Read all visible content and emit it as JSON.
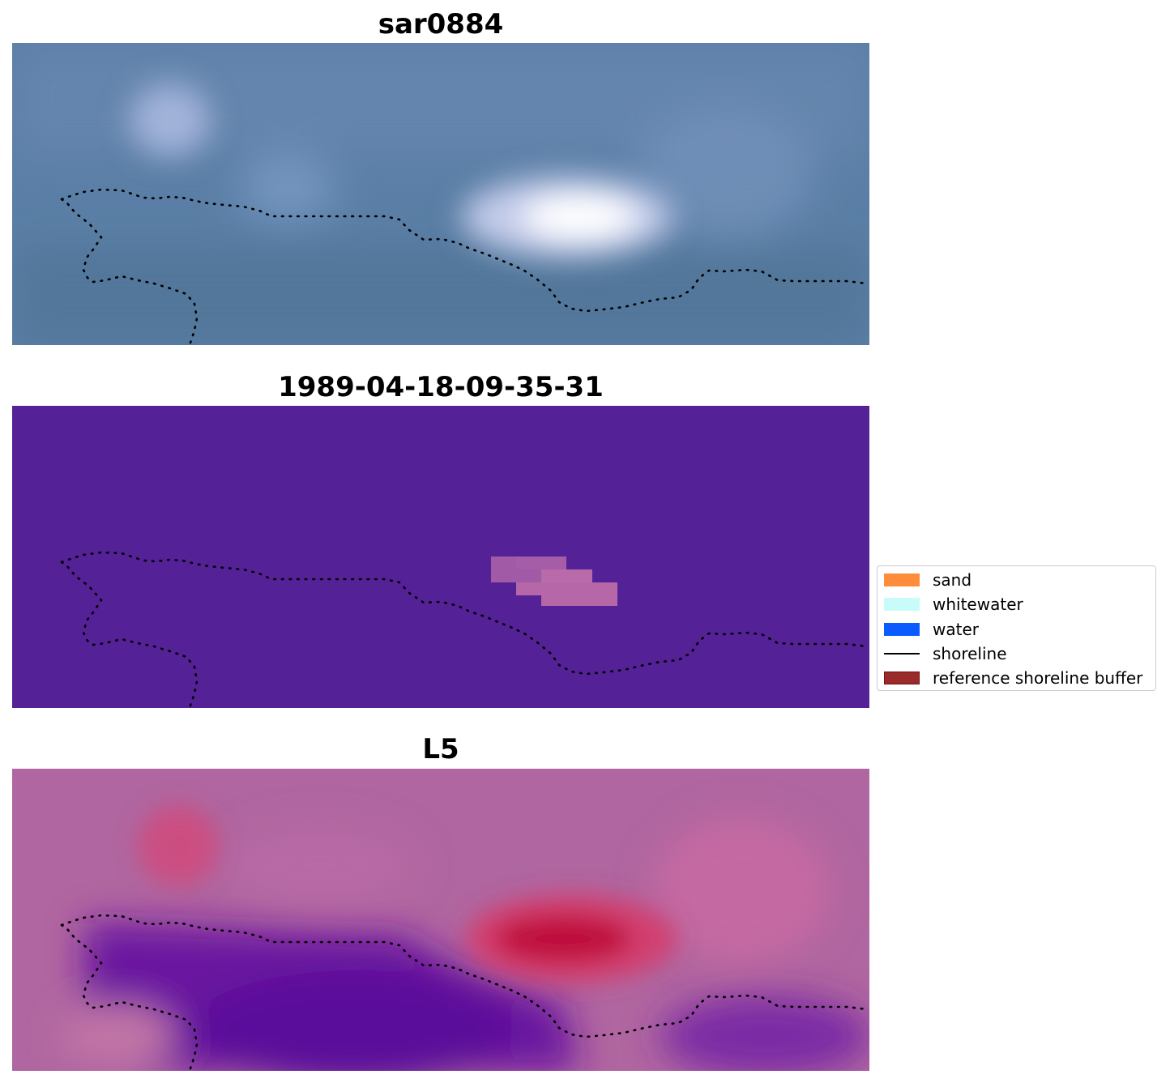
{
  "panels": [
    {
      "title": "sar0884"
    },
    {
      "title": "1989-04-18-09-35-31"
    },
    {
      "title": "L5"
    }
  ],
  "colors": {
    "rgb_base": "#5b7fa6",
    "classified_base": "#542196",
    "classified_patch": "#a15aa6",
    "index_base": "#b066a0",
    "index_hot": "#c4123f",
    "index_cold": "#5c0a9a",
    "shoreline_dots": "#000000"
  },
  "legend": {
    "items": [
      {
        "label": "sand",
        "color": "#ff8c3a",
        "kind": "patch"
      },
      {
        "label": "whitewater",
        "color": "#c8fcfa",
        "kind": "patch"
      },
      {
        "label": "water",
        "color": "#0a5cff",
        "kind": "patch"
      },
      {
        "label": "shoreline",
        "color": "#000000",
        "kind": "line"
      },
      {
        "label": "reference shoreline buffer",
        "color": "#9b2a2a",
        "kind": "patch"
      }
    ]
  }
}
